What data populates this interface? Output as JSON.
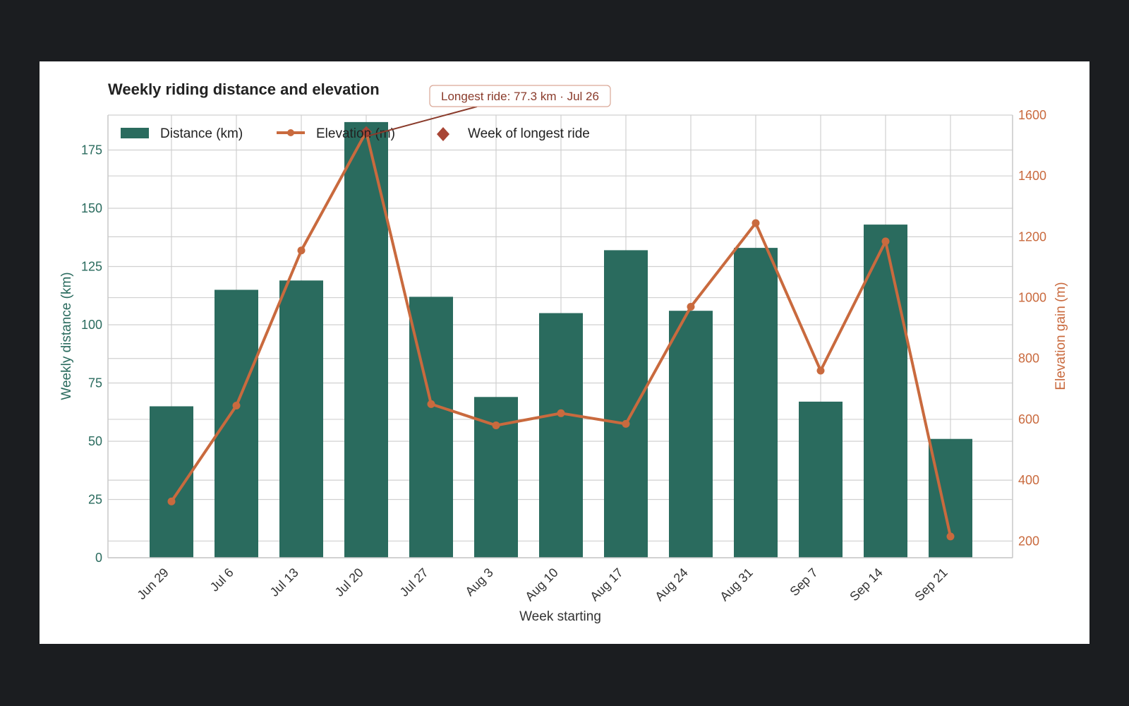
{
  "chart_data": {
    "type": "bar",
    "title": "Weekly riding distance and elevation",
    "xlabel": "Week starting",
    "ylabel": "Weekly distance (km)",
    "y2label": "Elevation gain (m)",
    "categories": [
      "Jun 29",
      "Jul 6",
      "Jul 13",
      "Jul 20",
      "Jul 27",
      "Aug 3",
      "Aug 10",
      "Aug 17",
      "Aug 24",
      "Aug 31",
      "Sep 7",
      "Sep 14",
      "Sep 21"
    ],
    "ylim": [
      0,
      190
    ],
    "y_ticks": [
      0,
      25,
      50,
      75,
      100,
      125,
      150,
      175
    ],
    "y2lim": [
      145,
      1600
    ],
    "y2_ticks": [
      200,
      400,
      600,
      800,
      1000,
      1200,
      1400,
      1600
    ],
    "grid": true,
    "legend_position": "top-left",
    "series": [
      {
        "name": "Distance (km)",
        "type": "bar",
        "axis": "left",
        "color": "#2a6b5e",
        "values": [
          65,
          115,
          119,
          187,
          112,
          69,
          105,
          132,
          106,
          133,
          67,
          143,
          51
        ]
      },
      {
        "name": "Elevation (m)",
        "type": "line",
        "axis": "right",
        "color": "#c96a3e",
        "values": [
          330,
          645,
          1155,
          1545,
          650,
          580,
          620,
          585,
          970,
          1245,
          760,
          1185,
          215
        ]
      }
    ],
    "highlight": {
      "legend_label": "Week of longest ride",
      "week": "Jul 20",
      "color": "#a84535"
    },
    "annotation": {
      "text": "Longest ride: 77.3 km · Jul 26",
      "color": "#8a3b2b"
    },
    "colors": {
      "left_axis": "#2a6b5e",
      "right_axis": "#c96a3e",
      "grid": "#d0d0d0"
    }
  }
}
